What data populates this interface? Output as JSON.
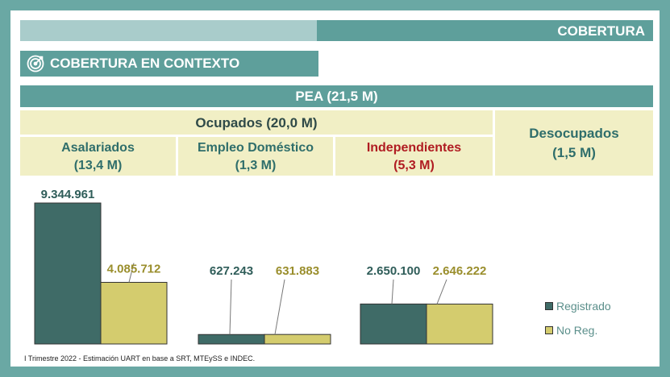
{
  "header": {
    "section": "COBERTURA"
  },
  "subheader": {
    "title": "COBERTURA EN CONTEXTO",
    "icon": "target-icon"
  },
  "table": {
    "pea": "PEA (21,5 M)",
    "ocupados": "Ocupados (20,0 M)",
    "desocupados": {
      "line1": "Desocupados",
      "line2": "(1,5 M)"
    },
    "asalariados": {
      "line1": "Asalariados",
      "line2": "(13,4 M)"
    },
    "domestico": {
      "line1": "Empleo Doméstico",
      "line2": "(1,3 M)"
    },
    "independientes": {
      "line1": "Independientes",
      "line2": "(5,3 M)"
    }
  },
  "chart_data": {
    "type": "bar",
    "categories": [
      "Asalariados",
      "Empleo Doméstico",
      "Independientes"
    ],
    "series": [
      {
        "name": "Registrado",
        "values": [
          9344961,
          627243,
          2650100
        ],
        "labels": [
          "9.344.961",
          "627.243",
          "2.650.100"
        ],
        "color": "#3f6b67"
      },
      {
        "name": "No Reg.",
        "values": [
          4085712,
          631883,
          2646222
        ],
        "labels": [
          "4.085.712",
          "631.883",
          "2.646.222"
        ],
        "color": "#d4cc6e"
      }
    ],
    "ylim": [
      0,
      9344961
    ],
    "label_colors": {
      "Registrado": "#2f5d59",
      "No Reg.": "#9a8e2c"
    }
  },
  "footer": {
    "source": "I Trimestre 2022 - Estimación UART en base a SRT, MTEySS e INDEC."
  },
  "colors": {
    "frame": "#6aa8a4",
    "header_dark": "#5e9f9b",
    "header_light": "#a9cccb",
    "cell_bg": "#f1efc5",
    "independientes_text": "#b01c22"
  }
}
